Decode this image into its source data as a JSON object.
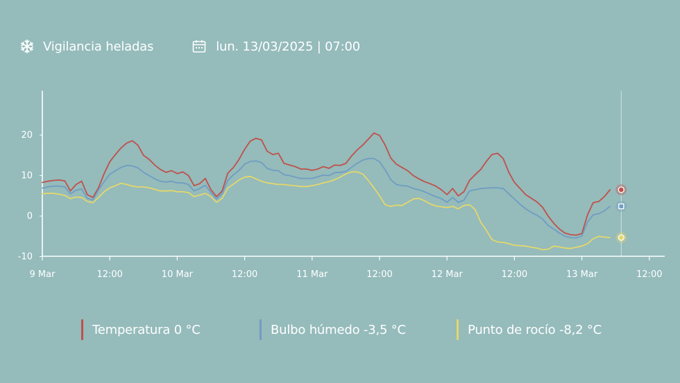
{
  "header": {
    "title": "Vigilancia heladas",
    "title_icon": "snowflake-icon",
    "datetime": "lun. 13/03/2025 | 07:00",
    "datetime_icon": "calendar-icon"
  },
  "colors": {
    "background": "#95bbbb",
    "temperatura": "#c0504a",
    "bulbo": "#6f9dc2",
    "rocio": "#e4d86a",
    "axis": "#ffffff"
  },
  "chart_data": {
    "type": "line",
    "x_unit": "hours since 9 Mar 00:00",
    "xlim": [
      0,
      105
    ],
    "ylim": [
      -10,
      30
    ],
    "yticks": [
      -10,
      0,
      10,
      20
    ],
    "ytick_labels": [
      "-10",
      "0",
      "10",
      "20"
    ],
    "xticks": [
      {
        "x": 0,
        "label": "9 Mar"
      },
      {
        "x": 12,
        "label": "12:00"
      },
      {
        "x": 24,
        "label": "10 Mar"
      },
      {
        "x": 36,
        "label": "12:00"
      },
      {
        "x": 48,
        "label": "11 Mar"
      },
      {
        "x": 60,
        "label": "12:00"
      },
      {
        "x": 72,
        "label": "12 Mar"
      },
      {
        "x": 84,
        "label": "12:00"
      },
      {
        "x": 96,
        "label": "13 Mar"
      },
      {
        "x": 108,
        "label": "12:00"
      }
    ],
    "cursor_x": 103,
    "legend_position": "bottom",
    "series": [
      {
        "name": "Temperatura 0 °C",
        "key": "temperatura",
        "marker": "circle",
        "points": [
          [
            0,
            8.3
          ],
          [
            1,
            8.6
          ],
          [
            2,
            8.8
          ],
          [
            3,
            8.9
          ],
          [
            4,
            8.7
          ],
          [
            5,
            6.2
          ],
          [
            6,
            7.8
          ],
          [
            7,
            8.6
          ],
          [
            8,
            5.3
          ],
          [
            9,
            4.6
          ],
          [
            10,
            7.0
          ],
          [
            11,
            10.5
          ],
          [
            12,
            13.4
          ],
          [
            13,
            15.2
          ],
          [
            14,
            16.8
          ],
          [
            15,
            18.0
          ],
          [
            16,
            18.6
          ],
          [
            17,
            17.5
          ],
          [
            18,
            15.0
          ],
          [
            19,
            14.0
          ],
          [
            20,
            12.6
          ],
          [
            21,
            11.5
          ],
          [
            22,
            10.8
          ],
          [
            23,
            11.2
          ],
          [
            24,
            10.5
          ],
          [
            25,
            10.9
          ],
          [
            26,
            10.0
          ],
          [
            27,
            7.5
          ],
          [
            28,
            8.0
          ],
          [
            29,
            9.3
          ],
          [
            30,
            6.5
          ],
          [
            31,
            4.8
          ],
          [
            32,
            6.2
          ],
          [
            33,
            10.6
          ],
          [
            34,
            12.0
          ],
          [
            35,
            14.0
          ],
          [
            36,
            16.5
          ],
          [
            37,
            18.5
          ],
          [
            38,
            19.2
          ],
          [
            39,
            18.8
          ],
          [
            40,
            16.0
          ],
          [
            41,
            15.2
          ],
          [
            42,
            15.5
          ],
          [
            43,
            13.0
          ],
          [
            44,
            12.6
          ],
          [
            45,
            12.2
          ],
          [
            46,
            11.6
          ],
          [
            47,
            11.6
          ],
          [
            48,
            11.3
          ],
          [
            49,
            11.6
          ],
          [
            50,
            12.2
          ],
          [
            51,
            11.8
          ],
          [
            52,
            12.6
          ],
          [
            53,
            12.5
          ],
          [
            54,
            13.0
          ],
          [
            55,
            14.8
          ],
          [
            56,
            16.3
          ],
          [
            57,
            17.5
          ],
          [
            58,
            19.0
          ],
          [
            59,
            20.5
          ],
          [
            60,
            19.9
          ],
          [
            61,
            17.5
          ],
          [
            62,
            14.3
          ],
          [
            63,
            12.8
          ],
          [
            64,
            12.0
          ],
          [
            65,
            11.2
          ],
          [
            66,
            10.0
          ],
          [
            67,
            9.2
          ],
          [
            68,
            8.5
          ],
          [
            69,
            8.0
          ],
          [
            70,
            7.4
          ],
          [
            71,
            6.5
          ],
          [
            72,
            5.3
          ],
          [
            73,
            6.8
          ],
          [
            74,
            5.0
          ],
          [
            75,
            6.0
          ],
          [
            76,
            8.8
          ],
          [
            77,
            10.2
          ],
          [
            78,
            11.5
          ],
          [
            79,
            13.5
          ],
          [
            80,
            15.2
          ],
          [
            81,
            15.5
          ],
          [
            82,
            14.2
          ],
          [
            83,
            10.8
          ],
          [
            84,
            8.3
          ],
          [
            85,
            6.8
          ],
          [
            86,
            5.3
          ],
          [
            87,
            4.4
          ],
          [
            88,
            3.5
          ],
          [
            89,
            2.2
          ],
          [
            90,
            0
          ],
          [
            91,
            -1.8
          ],
          [
            92,
            -3.2
          ],
          [
            93,
            -4.2
          ],
          [
            94,
            -4.6
          ],
          [
            95,
            -4.7
          ],
          [
            96,
            -4.3
          ],
          [
            97,
            0.3
          ],
          [
            98,
            3.3
          ],
          [
            99,
            3.6
          ],
          [
            100,
            4.8
          ],
          [
            101,
            6.5
          ]
        ]
      },
      {
        "name": "Bulbo húmedo -3,5 °C",
        "key": "bulbo",
        "marker": "square",
        "points": [
          [
            0,
            6.9
          ],
          [
            1,
            7.2
          ],
          [
            2,
            7.4
          ],
          [
            3,
            7.4
          ],
          [
            4,
            7.2
          ],
          [
            5,
            5.5
          ],
          [
            6,
            6.4
          ],
          [
            7,
            6.7
          ],
          [
            8,
            4.4
          ],
          [
            9,
            4.0
          ],
          [
            10,
            6.5
          ],
          [
            11,
            8.5
          ],
          [
            12,
            10.3
          ],
          [
            13,
            11.2
          ],
          [
            14,
            12.0
          ],
          [
            15,
            12.5
          ],
          [
            16,
            12.4
          ],
          [
            17,
            11.9
          ],
          [
            18,
            10.8
          ],
          [
            19,
            10.0
          ],
          [
            20,
            9.2
          ],
          [
            21,
            8.6
          ],
          [
            22,
            8.4
          ],
          [
            23,
            8.6
          ],
          [
            24,
            8.2
          ],
          [
            25,
            8.2
          ],
          [
            26,
            7.8
          ],
          [
            27,
            6.2
          ],
          [
            28,
            6.8
          ],
          [
            29,
            7.6
          ],
          [
            30,
            5.8
          ],
          [
            31,
            4.2
          ],
          [
            32,
            5.6
          ],
          [
            33,
            8.8
          ],
          [
            34,
            10.2
          ],
          [
            35,
            11.3
          ],
          [
            36,
            12.8
          ],
          [
            37,
            13.5
          ],
          [
            38,
            13.6
          ],
          [
            39,
            13.2
          ],
          [
            40,
            11.8
          ],
          [
            41,
            11.3
          ],
          [
            42,
            11.2
          ],
          [
            43,
            10.2
          ],
          [
            44,
            10.0
          ],
          [
            45,
            9.6
          ],
          [
            46,
            9.3
          ],
          [
            47,
            9.3
          ],
          [
            48,
            9.3
          ],
          [
            49,
            9.7
          ],
          [
            50,
            10.1
          ],
          [
            51,
            10.0
          ],
          [
            52,
            10.7
          ],
          [
            53,
            10.8
          ],
          [
            54,
            11.0
          ],
          [
            55,
            12.0
          ],
          [
            56,
            13.0
          ],
          [
            57,
            13.8
          ],
          [
            58,
            14.2
          ],
          [
            59,
            14.2
          ],
          [
            60,
            13.4
          ],
          [
            61,
            11.4
          ],
          [
            62,
            9.0
          ],
          [
            63,
            7.8
          ],
          [
            64,
            7.5
          ],
          [
            65,
            7.4
          ],
          [
            66,
            6.8
          ],
          [
            67,
            6.5
          ],
          [
            68,
            6.0
          ],
          [
            69,
            5.4
          ],
          [
            70,
            4.8
          ],
          [
            71,
            4.3
          ],
          [
            72,
            3.4
          ],
          [
            73,
            4.6
          ],
          [
            74,
            3.4
          ],
          [
            75,
            3.9
          ],
          [
            76,
            6.2
          ],
          [
            77,
            6.5
          ],
          [
            78,
            6.8
          ],
          [
            79,
            6.9
          ],
          [
            80,
            7.0
          ],
          [
            81,
            7.0
          ],
          [
            82,
            6.8
          ],
          [
            83,
            5.5
          ],
          [
            84,
            4.2
          ],
          [
            85,
            2.9
          ],
          [
            86,
            1.8
          ],
          [
            87,
            0.9
          ],
          [
            88,
            0.2
          ],
          [
            89,
            -0.7
          ],
          [
            90,
            -2.3
          ],
          [
            91,
            -3.2
          ],
          [
            92,
            -4.2
          ],
          [
            93,
            -5.0
          ],
          [
            94,
            -5.3
          ],
          [
            95,
            -5.4
          ],
          [
            96,
            -4.9
          ],
          [
            97,
            -1.5
          ],
          [
            98,
            0.3
          ],
          [
            99,
            0.6
          ],
          [
            100,
            1.3
          ],
          [
            101,
            2.4
          ]
        ]
      },
      {
        "name": "Punto de rocío -8,2 °C",
        "key": "rocio",
        "marker": "circle",
        "points": [
          [
            0,
            5.5
          ],
          [
            1,
            5.6
          ],
          [
            2,
            5.6
          ],
          [
            3,
            5.4
          ],
          [
            4,
            5.1
          ],
          [
            5,
            4.3
          ],
          [
            6,
            4.7
          ],
          [
            7,
            4.6
          ],
          [
            8,
            3.6
          ],
          [
            9,
            3.3
          ],
          [
            10,
            4.6
          ],
          [
            11,
            6.0
          ],
          [
            12,
            7.0
          ],
          [
            13,
            7.5
          ],
          [
            14,
            8.1
          ],
          [
            15,
            7.8
          ],
          [
            16,
            7.4
          ],
          [
            17,
            7.2
          ],
          [
            18,
            7.2
          ],
          [
            19,
            7.0
          ],
          [
            20,
            6.6
          ],
          [
            21,
            6.2
          ],
          [
            22,
            6.2
          ],
          [
            23,
            6.3
          ],
          [
            24,
            6.0
          ],
          [
            25,
            6.0
          ],
          [
            26,
            5.8
          ],
          [
            27,
            4.8
          ],
          [
            28,
            5.2
          ],
          [
            29,
            5.6
          ],
          [
            30,
            4.8
          ],
          [
            31,
            3.4
          ],
          [
            32,
            4.4
          ],
          [
            33,
            6.9
          ],
          [
            34,
            7.9
          ],
          [
            35,
            8.9
          ],
          [
            36,
            9.6
          ],
          [
            37,
            9.8
          ],
          [
            38,
            9.2
          ],
          [
            39,
            8.6
          ],
          [
            40,
            8.2
          ],
          [
            41,
            8.0
          ],
          [
            42,
            7.8
          ],
          [
            43,
            7.8
          ],
          [
            44,
            7.6
          ],
          [
            45,
            7.5
          ],
          [
            46,
            7.3
          ],
          [
            47,
            7.3
          ],
          [
            48,
            7.5
          ],
          [
            49,
            7.8
          ],
          [
            50,
            8.2
          ],
          [
            51,
            8.5
          ],
          [
            52,
            9.0
          ],
          [
            53,
            9.6
          ],
          [
            54,
            10.4
          ],
          [
            55,
            10.9
          ],
          [
            56,
            10.9
          ],
          [
            57,
            10.4
          ],
          [
            58,
            8.8
          ],
          [
            59,
            7.0
          ],
          [
            60,
            5.0
          ],
          [
            61,
            2.8
          ],
          [
            62,
            2.4
          ],
          [
            63,
            2.7
          ],
          [
            64,
            2.6
          ],
          [
            65,
            3.4
          ],
          [
            66,
            4.2
          ],
          [
            67,
            4.4
          ],
          [
            68,
            3.8
          ],
          [
            69,
            3.0
          ],
          [
            70,
            2.5
          ],
          [
            71,
            2.3
          ],
          [
            72,
            2.1
          ],
          [
            73,
            2.4
          ],
          [
            74,
            1.8
          ],
          [
            75,
            2.6
          ],
          [
            76,
            2.8
          ],
          [
            77,
            1.6
          ],
          [
            78,
            -1.5
          ],
          [
            79,
            -3.5
          ],
          [
            80,
            -5.8
          ],
          [
            81,
            -6.4
          ],
          [
            82,
            -6.5
          ],
          [
            83,
            -6.8
          ],
          [
            84,
            -7.2
          ],
          [
            85,
            -7.3
          ],
          [
            86,
            -7.4
          ],
          [
            87,
            -7.7
          ],
          [
            88,
            -7.9
          ],
          [
            89,
            -8.3
          ],
          [
            90,
            -8.2
          ],
          [
            91,
            -7.4
          ],
          [
            92,
            -7.6
          ],
          [
            93,
            -7.9
          ],
          [
            94,
            -8.0
          ],
          [
            95,
            -7.7
          ],
          [
            96,
            -7.4
          ],
          [
            97,
            -6.8
          ],
          [
            98,
            -5.6
          ],
          [
            99,
            -5.0
          ],
          [
            100,
            -5.2
          ],
          [
            101,
            -5.3
          ]
        ]
      }
    ]
  }
}
